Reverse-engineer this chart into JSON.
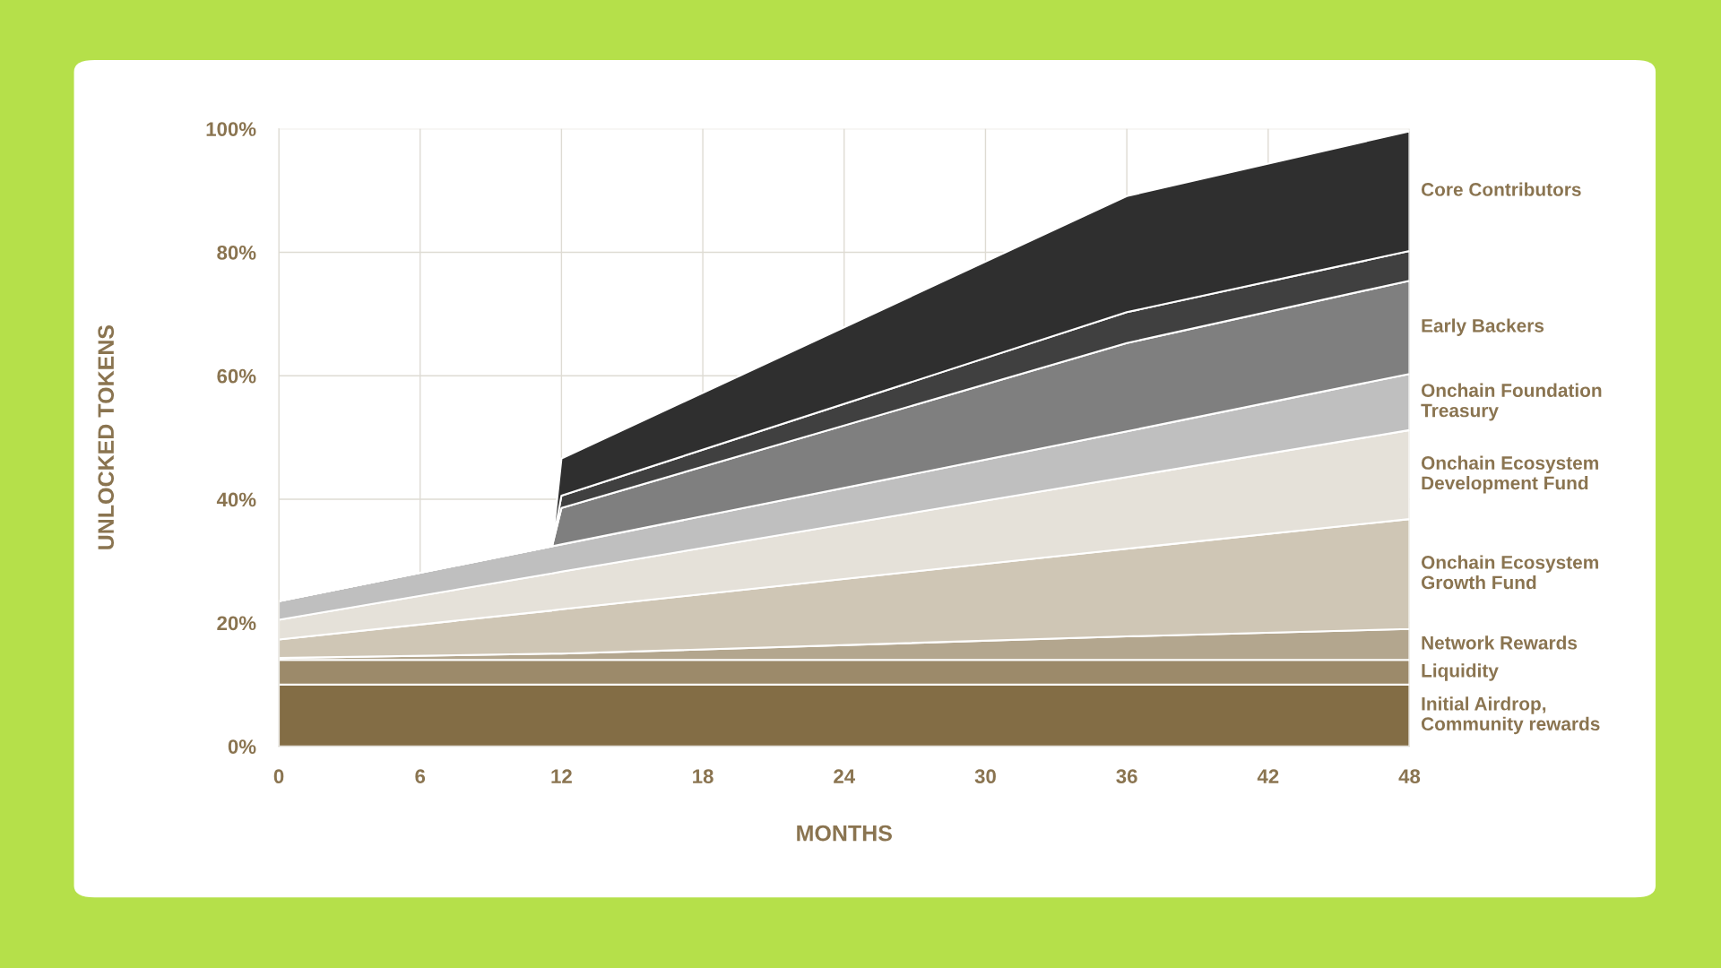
{
  "chart_data": {
    "type": "area",
    "stacked": true,
    "xlabel": "MONTHS",
    "ylabel": "UNLOCKED TOKENS",
    "x": [
      0,
      11.6,
      12,
      36,
      48
    ],
    "xlim": [
      0,
      48
    ],
    "xticks": [
      0,
      6,
      12,
      18,
      24,
      30,
      36,
      42,
      48
    ],
    "ylim": [
      0,
      100
    ],
    "yticks": [
      {
        "value": 0,
        "label": "0%"
      },
      {
        "value": 20,
        "label": "20%"
      },
      {
        "value": 40,
        "label": "40%"
      },
      {
        "value": 60,
        "label": "60%"
      },
      {
        "value": 80,
        "label": "80%"
      },
      {
        "value": 100,
        "label": "100%"
      }
    ],
    "grid": true,
    "legend": false,
    "series": [
      {
        "name": "Initial Airdrop,\nCommunity rewards",
        "color": "#836d45",
        "values": [
          10,
          10,
          10,
          10,
          10
        ]
      },
      {
        "name": "Liquidity",
        "color": "#9c8a6a",
        "values": [
          4,
          4,
          4,
          4,
          4
        ]
      },
      {
        "name": "Network Rewards",
        "color": "#b3a68e",
        "values": [
          0.3,
          1,
          1,
          3.8,
          5
        ]
      },
      {
        "name": "Onchain Ecosystem\nGrowth Fund",
        "color": "#cfc6b5",
        "values": [
          3,
          7,
          7.2,
          14.2,
          17.8
        ]
      },
      {
        "name": "Onchain Ecosystem\nDevelopment Fund",
        "color": "#e5e1d9",
        "values": [
          3.2,
          6,
          6.1,
          11.6,
          14.4
        ]
      },
      {
        "name": "Onchain Foundation\nTreasury",
        "color": "#bfbfbf",
        "values": [
          3,
          4.4,
          4.4,
          7.4,
          9.1
        ]
      },
      {
        "name": "Early Backers",
        "color": "#7f7f7f",
        "values": [
          0,
          0,
          5.9,
          14.3,
          15.1
        ]
      },
      {
        "color": "#404040",
        "values": [
          0,
          0,
          2,
          5,
          4.8
        ]
      },
      {
        "name": "Core Contributors",
        "color": "#2f2f2f",
        "values": [
          0,
          0,
          6,
          18.8,
          19.4
        ]
      }
    ]
  }
}
